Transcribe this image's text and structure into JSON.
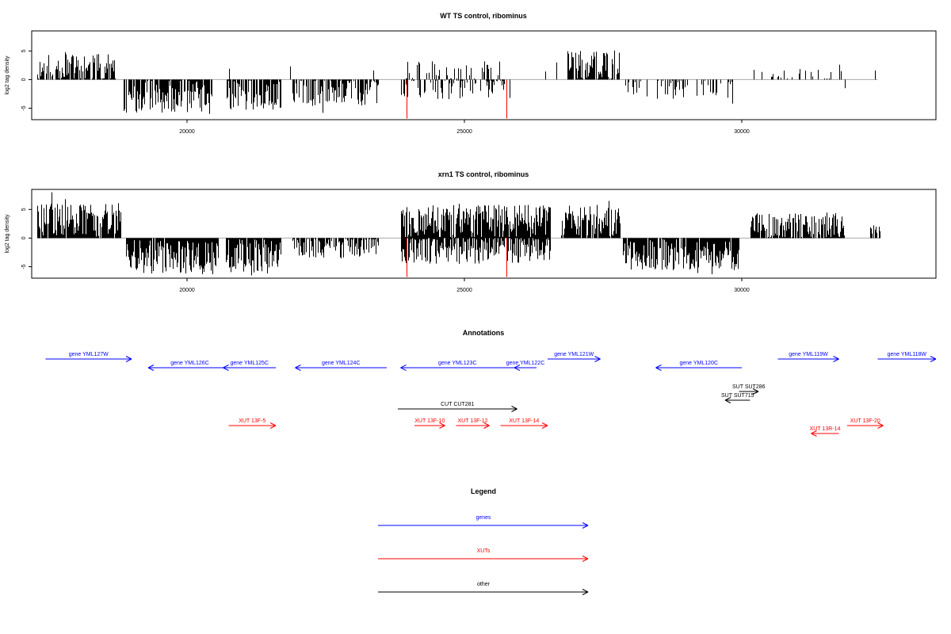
{
  "colors": {
    "black": "#000000",
    "red": "#ff0000",
    "blue": "#0000ff",
    "baseline": "#aaaaaa"
  },
  "chart_data": [
    {
      "type": "bar",
      "title": "WT TS control, ribominus",
      "ylabel": "log2 tag density",
      "xlim": [
        17200,
        33500
      ],
      "ylim": [
        -7,
        8.5
      ],
      "yticks": [
        -5,
        0,
        5
      ],
      "xticks": [
        20000,
        25000,
        30000
      ],
      "grid": false,
      "segments": [
        {
          "from": 17300,
          "to": 18700,
          "sign": 1,
          "mean": 2.0,
          "amp": 2.5,
          "density": 0.7
        },
        {
          "from": 18850,
          "to": 20450,
          "sign": -1,
          "mean": 2.8,
          "amp": 3.0,
          "density": 0.85
        },
        {
          "from": 20700,
          "to": 21700,
          "sign": -1,
          "mean": 2.5,
          "amp": 2.8,
          "density": 0.85
        },
        {
          "from": 21900,
          "to": 23450,
          "sign": -1,
          "mean": 1.8,
          "amp": 2.8,
          "density": 0.65
        },
        {
          "from": 23850,
          "to": 25850,
          "sign": -1,
          "mean": 1.4,
          "amp": 2.0,
          "density": 0.35
        },
        {
          "from": 23900,
          "to": 25700,
          "sign": 1,
          "mean": 1.2,
          "amp": 2.0,
          "density": 0.22
        },
        {
          "from": 26850,
          "to": 27800,
          "sign": 1,
          "mean": 2.5,
          "amp": 2.5,
          "density": 0.7
        },
        {
          "from": 27850,
          "to": 29900,
          "sign": -1,
          "mean": 1.5,
          "amp": 2.0,
          "density": 0.3
        },
        {
          "from": 30300,
          "to": 31800,
          "sign": 1,
          "mean": 1.0,
          "amp": 1.2,
          "density": 0.15
        }
      ],
      "spikes": [
        {
          "x": 17500,
          "y": 4.3
        },
        {
          "x": 17800,
          "y": 4.8
        },
        {
          "x": 18300,
          "y": 4.2
        },
        {
          "x": 27700,
          "y": 5.1
        },
        {
          "x": 27500,
          "y": 4.6
        },
        {
          "x": 20400,
          "y": -6.0
        },
        {
          "x": 22450,
          "y": -5.8
        },
        {
          "x": 29830,
          "y": -4.2
        },
        {
          "x": 30220,
          "y": 1.7
        },
        {
          "x": 31750,
          "y": 2.6
        },
        {
          "x": 32400,
          "y": 1.6
        },
        {
          "x": 31850,
          "y": -1.5
        },
        {
          "x": 20750,
          "y": 1.9
        },
        {
          "x": 21860,
          "y": 2.3
        },
        {
          "x": 23350,
          "y": 1.6
        },
        {
          "x": 26450,
          "y": 1.4
        },
        {
          "x": 26650,
          "y": 3.0
        }
      ],
      "marks": [
        {
          "x": 23960,
          "y": -6.8
        },
        {
          "x": 25750,
          "y": -6.8
        }
      ],
      "xaxis_end": 32450,
      "seed": 11
    },
    {
      "type": "bar",
      "title": "xrn1 TS control, ribominus",
      "ylabel": "log2 tag density",
      "xlim": [
        17200,
        33500
      ],
      "ylim": [
        -7,
        8.5
      ],
      "yticks": [
        -5,
        0,
        5
      ],
      "xticks": [
        20000,
        25000,
        30000
      ],
      "grid": false,
      "segments": [
        {
          "from": 17300,
          "to": 18800,
          "sign": 1,
          "mean": 3.2,
          "amp": 3.0,
          "density": 0.95
        },
        {
          "from": 18900,
          "to": 20550,
          "sign": -1,
          "mean": 3.3,
          "amp": 3.0,
          "density": 0.95
        },
        {
          "from": 20700,
          "to": 21700,
          "sign": -1,
          "mean": 3.2,
          "amp": 3.0,
          "density": 0.95
        },
        {
          "from": 21900,
          "to": 23450,
          "sign": -1,
          "mean": 1.6,
          "amp": 2.0,
          "density": 0.7
        },
        {
          "from": 23850,
          "to": 26550,
          "sign": 1,
          "mean": 2.8,
          "amp": 3.0,
          "density": 0.95
        },
        {
          "from": 23850,
          "to": 26550,
          "sign": -1,
          "mean": 2.0,
          "amp": 2.5,
          "density": 0.8
        },
        {
          "from": 26750,
          "to": 27800,
          "sign": 1,
          "mean": 2.8,
          "amp": 3.0,
          "density": 0.9
        },
        {
          "from": 27850,
          "to": 29950,
          "sign": -1,
          "mean": 2.8,
          "amp": 2.8,
          "density": 0.9
        },
        {
          "from": 30150,
          "to": 31850,
          "sign": 1,
          "mean": 2.0,
          "amp": 2.5,
          "density": 0.8
        },
        {
          "from": 32300,
          "to": 32500,
          "sign": 1,
          "mean": 1.6,
          "amp": 1.0,
          "density": 0.6
        }
      ],
      "spikes": [
        {
          "x": 17550,
          "y": 8.0
        },
        {
          "x": 17800,
          "y": 6.8
        },
        {
          "x": 18250,
          "y": 5.8
        },
        {
          "x": 27600,
          "y": 6.5
        },
        {
          "x": 20450,
          "y": -6.3
        },
        {
          "x": 21150,
          "y": -6.5
        },
        {
          "x": 24900,
          "y": 6.0
        },
        {
          "x": 29450,
          "y": -6.3
        },
        {
          "x": 29200,
          "y": -6.1
        }
      ],
      "marks": [
        {
          "x": 23960,
          "y": -6.8
        },
        {
          "x": 25750,
          "y": -6.8
        }
      ],
      "xaxis_end": 32500,
      "seed": 29
    }
  ],
  "annotations": {
    "title": "Annotations",
    "xlim": [
      17200,
      33500
    ],
    "rows": [
      {
        "items": [
          {
            "label": "gene YML127W",
            "from": 17450,
            "to": 19000,
            "dir": "right",
            "color": "blue"
          },
          {
            "label": "gene YML121W",
            "from": 26500,
            "to": 27450,
            "dir": "right",
            "color": "blue"
          },
          {
            "label": "gene YML119W",
            "from": 30650,
            "to": 31750,
            "dir": "right",
            "color": "blue"
          },
          {
            "label": "gene YML118W",
            "from": 32450,
            "to": 33500,
            "dir": "right",
            "color": "blue"
          }
        ]
      },
      {
        "items": [
          {
            "label": "gene YML126C",
            "from": 19300,
            "to": 20800,
            "dir": "left",
            "color": "blue"
          },
          {
            "label": "gene YML125C",
            "from": 20650,
            "to": 21600,
            "dir": "left",
            "color": "blue"
          },
          {
            "label": "gene YML124C",
            "from": 21950,
            "to": 23600,
            "dir": "left",
            "color": "blue"
          },
          {
            "label": "gene YML123C",
            "from": 23850,
            "to": 25900,
            "dir": "left",
            "color": "blue"
          },
          {
            "label": "gene YML122C",
            "from": 25900,
            "to": 26300,
            "dir": "left",
            "color": "blue"
          },
          {
            "label": "gene YML120C",
            "from": 28450,
            "to": 30000,
            "dir": "left",
            "color": "blue"
          }
        ]
      },
      {
        "items": [
          {
            "label": "SUT SUT286",
            "from": 29950,
            "to": 30300,
            "dir": "right",
            "color": "black"
          }
        ]
      },
      {
        "items": [
          {
            "label": "SUT SUT715",
            "from": 29700,
            "to": 30150,
            "dir": "left",
            "color": "black"
          }
        ]
      },
      {
        "items": [
          {
            "label": "CUT CUT281",
            "from": 23800,
            "to": 25950,
            "dir": "right",
            "color": "black"
          }
        ]
      },
      {
        "items": [
          {
            "label": "XUT 13F-5",
            "from": 20750,
            "to": 21600,
            "dir": "right",
            "color": "red"
          },
          {
            "label": "XUT 13F-10",
            "from": 24100,
            "to": 24650,
            "dir": "right",
            "color": "red"
          },
          {
            "label": "XUT 13F-12",
            "from": 24850,
            "to": 25450,
            "dir": "right",
            "color": "red"
          },
          {
            "label": "XUT 13F-14",
            "from": 25650,
            "to": 26500,
            "dir": "right",
            "color": "red"
          },
          {
            "label": "XUT 13F-20",
            "from": 31900,
            "to": 32550,
            "dir": "right",
            "color": "red"
          }
        ]
      },
      {
        "items": [
          {
            "label": "XUT 13R-14",
            "from": 31250,
            "to": 31750,
            "dir": "left",
            "color": "red"
          }
        ]
      }
    ]
  },
  "legend": {
    "title": "Legend",
    "items": [
      {
        "label": "genes",
        "color": "blue"
      },
      {
        "label": "XUTs",
        "color": "red"
      },
      {
        "label": "other",
        "color": "black"
      }
    ]
  }
}
